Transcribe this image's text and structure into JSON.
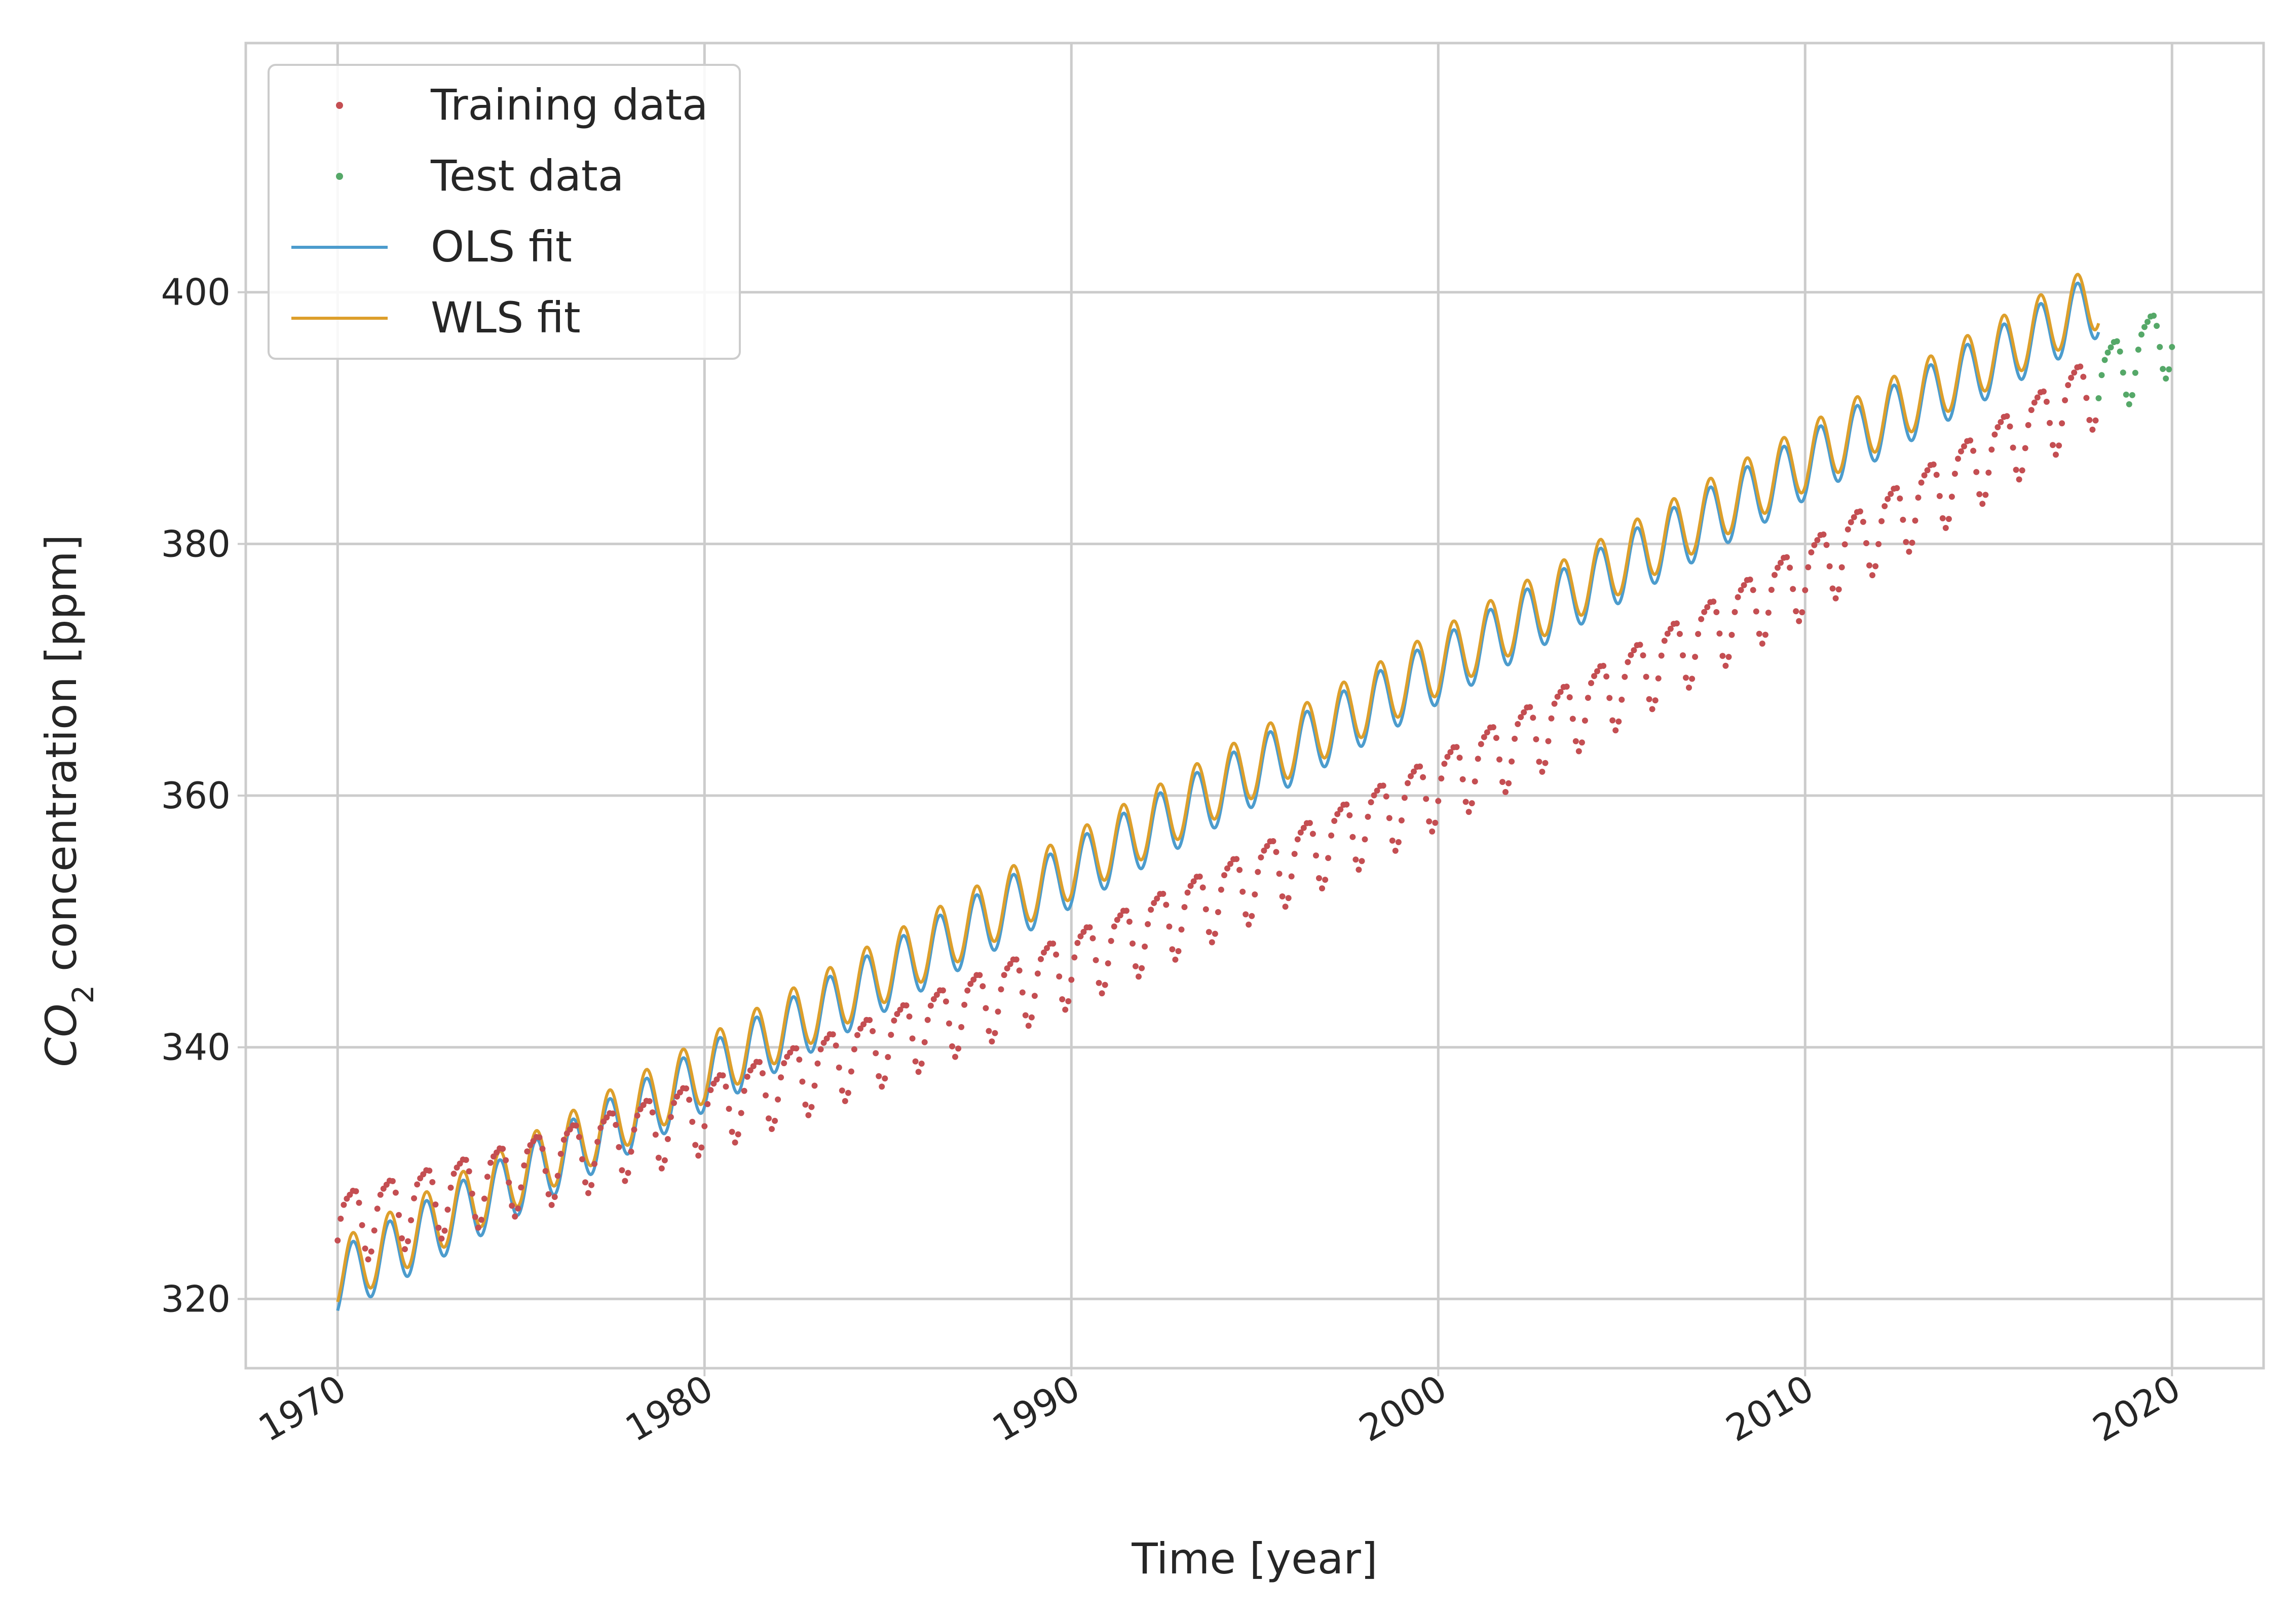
{
  "chart_data": {
    "type": "scatter",
    "xlabel": "Time [year]",
    "ylabel_main": "CO",
    "ylabel_sub": "2",
    "ylabel_rest": " concentration [ppm]",
    "xlim": [
      "1967-07-01",
      "2022-07-01"
    ],
    "ylim": [
      314.5,
      419.8
    ],
    "x_ticks": [
      {
        "value": "1970-01-01",
        "label": "1970"
      },
      {
        "value": "1980-01-01",
        "label": "1980"
      },
      {
        "value": "1990-01-01",
        "label": "1990"
      },
      {
        "value": "2000-01-01",
        "label": "2000"
      },
      {
        "value": "2010-01-01",
        "label": "2010"
      },
      {
        "value": "2020-01-01",
        "label": "2020"
      }
    ],
    "y_ticks": [
      {
        "value": 320,
        "label": "320"
      },
      {
        "value": 340,
        "label": "340"
      },
      {
        "value": 360,
        "label": "360"
      },
      {
        "value": 380,
        "label": "380"
      },
      {
        "value": 400,
        "label": "400"
      }
    ],
    "grid": true,
    "legend_position": "top-left",
    "colors": {
      "training": "#c44e52",
      "test": "#55a868",
      "ols": "#4c9ccd",
      "wls": "#dd9f2b",
      "grid": "#cccccc",
      "spine": "#cccccc"
    },
    "legend": [
      {
        "key": "training",
        "label": "Training data",
        "kind": "marker"
      },
      {
        "key": "test",
        "label": "Test data",
        "kind": "marker"
      },
      {
        "key": "ols",
        "label": "OLS fit",
        "kind": "line"
      },
      {
        "key": "wls",
        "label": "WLS fit",
        "kind": "line"
      }
    ],
    "series_model": {
      "note_free": true,
      "start": "1970-01",
      "train_end": "2018-01",
      "test_end": "2020-01",
      "training_base": 326.0,
      "training_peak_amplitude": 2.8,
      "ols_intercept": 321.3,
      "ols_slope": 1.62,
      "ols_amplitude": 2.6,
      "wls_offset": 0.7
    }
  }
}
